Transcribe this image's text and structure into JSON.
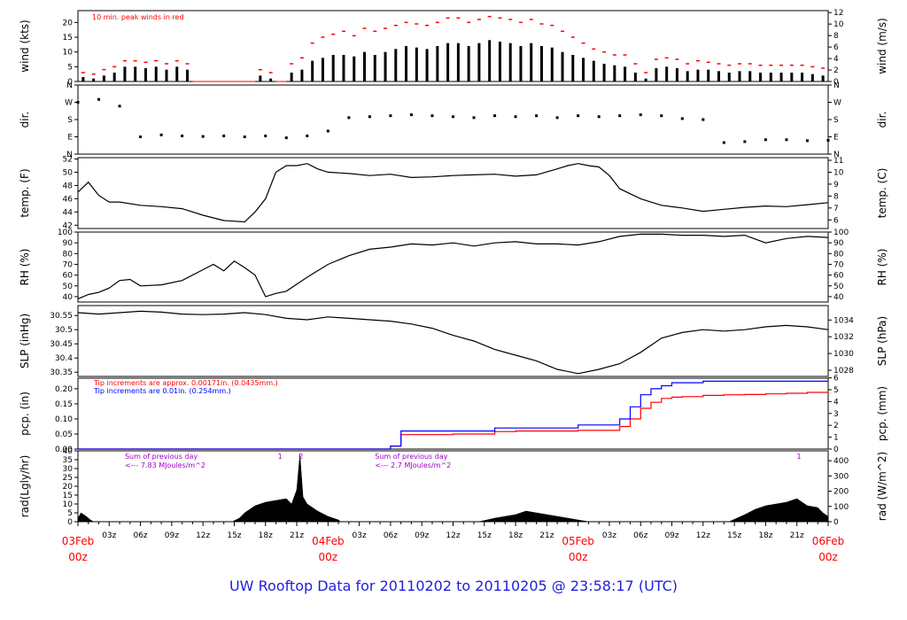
{
  "footer_title": "UW Rooftop Data for 20110202  to  20110205 @ 23:58:17  (UTC)",
  "colors": {
    "data": "#000000",
    "peak": "#ff0000",
    "time_major": "#ff0000",
    "pcp_red": "#ff0000",
    "pcp_blue": "#0000ff",
    "annot_purple": "#a000c0",
    "footer": "#1f1fd9"
  },
  "chart_data": [
    {
      "id": "wind",
      "type": "line",
      "ylabel": "wind (kts)",
      "ylabel_right": "wind (m/s)",
      "ylim": [
        0,
        24
      ],
      "yticks": [
        0,
        5,
        10,
        15,
        20
      ],
      "right_ticks": [
        0,
        2,
        4,
        6,
        8,
        10,
        12
      ],
      "right_factor": 0.5144,
      "annotation": "10 min. peak winds in red",
      "series": [
        {
          "name": "",
          "kind": "bars",
          "x": [
            1,
            2,
            3,
            4,
            5,
            6,
            7,
            8,
            9,
            10,
            11,
            12,
            13,
            14,
            15,
            16,
            17,
            18,
            19,
            20,
            21,
            22,
            23,
            24,
            25,
            26,
            27,
            28,
            29,
            30,
            31,
            32,
            33,
            34,
            35,
            36,
            37,
            38,
            39,
            40,
            41,
            42,
            43,
            44,
            45,
            46,
            47,
            48,
            49,
            50,
            51,
            52,
            53,
            54,
            55,
            56,
            57,
            58,
            59,
            60,
            61,
            62,
            63,
            64,
            65,
            66,
            67,
            68,
            69,
            70,
            71,
            72
          ],
          "y": [
            1.5,
            1,
            2,
            3,
            5,
            5,
            4.5,
            5,
            4,
            5,
            4,
            0,
            0,
            0,
            0,
            0,
            0,
            2,
            1,
            0,
            3,
            4,
            7,
            8,
            9,
            9,
            8.5,
            10,
            9,
            10,
            11,
            12,
            11.5,
            11,
            12,
            13,
            13,
            12,
            13,
            14,
            13.5,
            13,
            12,
            13,
            12,
            11.5,
            10,
            9,
            8,
            7,
            6,
            5.5,
            5,
            3,
            1,
            4.5,
            5,
            4.5,
            3.5,
            4,
            4,
            3.5,
            3,
            3.5,
            3.5,
            3,
            3,
            3,
            3,
            3,
            2.5,
            2
          ]
        },
        {
          "name": "",
          "kind": "peaks",
          "x": [
            1,
            2,
            3,
            4,
            5,
            6,
            7,
            8,
            9,
            10,
            11,
            12,
            13,
            14,
            15,
            16,
            17,
            18,
            19,
            20,
            21,
            22,
            23,
            24,
            25,
            26,
            27,
            28,
            29,
            30,
            31,
            32,
            33,
            34,
            35,
            36,
            37,
            38,
            39,
            40,
            41,
            42,
            43,
            44,
            45,
            46,
            47,
            48,
            49,
            50,
            51,
            52,
            53,
            54,
            55,
            56,
            57,
            58,
            59,
            60,
            61,
            62,
            63,
            64,
            65,
            66,
            67,
            68,
            69,
            70,
            71,
            72
          ],
          "y": [
            3,
            2.5,
            4,
            5,
            7,
            7,
            6.5,
            7,
            6,
            7,
            6,
            0,
            0,
            0,
            0,
            0,
            0,
            4,
            3,
            0,
            6,
            8,
            13,
            15,
            16,
            17,
            15.5,
            18,
            17,
            18,
            19,
            20,
            19.5,
            19,
            20,
            21.5,
            21.5,
            20,
            21,
            22,
            21.5,
            21,
            20,
            21,
            19.5,
            19,
            17,
            15,
            13,
            11,
            10,
            9,
            9,
            6,
            3,
            7.5,
            8,
            7.5,
            6,
            7,
            6.5,
            6,
            5.5,
            6,
            6,
            5.5,
            5.5,
            5.5,
            5.5,
            5.5,
            5,
            4.5
          ]
        }
      ]
    },
    {
      "id": "dir",
      "type": "scatter",
      "ylabel": "dir.",
      "ylabel_right": "dir.",
      "ylim": [
        0,
        360
      ],
      "ytick_labels": [
        "N",
        "E",
        "S",
        "W",
        "N"
      ],
      "yticks": [
        0,
        90,
        180,
        270,
        360
      ],
      "series": [
        {
          "name": "",
          "x": [
            0,
            2,
            4,
            6,
            8,
            10,
            12,
            14,
            16,
            18,
            20,
            22,
            24,
            26,
            28,
            30,
            32,
            34,
            36,
            38,
            40,
            42,
            44,
            46,
            48,
            50,
            52,
            54,
            56,
            58,
            60,
            62,
            64,
            66,
            68,
            70,
            72
          ],
          "y": [
            270,
            285,
            250,
            90,
            100,
            95,
            92,
            95,
            90,
            95,
            85,
            95,
            120,
            190,
            195,
            200,
            205,
            200,
            195,
            190,
            200,
            195,
            200,
            190,
            200,
            195,
            200,
            205,
            200,
            185,
            180,
            60,
            65,
            75,
            75,
            70,
            72
          ]
        }
      ]
    },
    {
      "id": "temp",
      "type": "line",
      "ylabel": "temp. (F)",
      "ylabel_right": "temp. (C)",
      "ylim": [
        41.5,
        52.2
      ],
      "yticks": [
        42,
        44,
        46,
        48,
        50,
        52
      ],
      "right_ticks": [
        6,
        7,
        8,
        9,
        10,
        11
      ],
      "series": [
        {
          "name": "",
          "x": [
            0,
            1,
            2,
            3,
            4,
            6,
            8,
            10,
            12,
            14,
            16,
            17,
            18,
            19,
            20,
            21,
            22,
            23,
            24,
            26,
            28,
            30,
            32,
            34,
            36,
            38,
            40,
            42,
            44,
            46,
            47,
            48,
            49,
            50,
            51,
            52,
            54,
            56,
            58,
            60,
            62,
            64,
            66,
            68,
            70,
            72
          ],
          "y": [
            47,
            48.5,
            46.5,
            45.5,
            45.5,
            45,
            44.8,
            44.5,
            43.5,
            42.7,
            42.5,
            44,
            46,
            50,
            51,
            51,
            51.3,
            50.5,
            50,
            49.8,
            49.5,
            49.7,
            49.2,
            49.3,
            49.5,
            49.6,
            49.7,
            49.4,
            49.6,
            50.5,
            51,
            51.3,
            51,
            50.8,
            49.5,
            47.5,
            46,
            45,
            44.6,
            44.1,
            44.4,
            44.7,
            44.9,
            44.8,
            45.1,
            45.4
          ]
        }
      ]
    },
    {
      "id": "rh",
      "type": "line",
      "ylabel": "RH (%)",
      "ylabel_right": "RH (%)",
      "ylim": [
        35,
        100
      ],
      "yticks": [
        40,
        50,
        60,
        70,
        80,
        90,
        100
      ],
      "series": [
        {
          "name": "",
          "x": [
            0,
            1,
            2,
            3,
            4,
            5,
            6,
            8,
            10,
            12,
            13,
            14,
            15,
            16,
            17,
            18,
            19,
            20,
            22,
            24,
            26,
            28,
            30,
            32,
            34,
            36,
            38,
            40,
            42,
            44,
            46,
            48,
            50,
            52,
            54,
            56,
            58,
            60,
            62,
            64,
            66,
            68,
            70,
            72
          ],
          "y": [
            38,
            42,
            44,
            48,
            55,
            56,
            50,
            51,
            55,
            65,
            70,
            64,
            73,
            67,
            60,
            40,
            43,
            45,
            58,
            70,
            78,
            84,
            86,
            89,
            88,
            90,
            87,
            90,
            91,
            89,
            89,
            88,
            91,
            96,
            98,
            98,
            97,
            97,
            96,
            97,
            90,
            94,
            96,
            95
          ]
        }
      ]
    },
    {
      "id": "slp",
      "type": "line",
      "ylabel": "SLP (inHg)",
      "ylabel_right": "SLP (hPa)",
      "ylim": [
        30.335,
        30.585
      ],
      "yticks": [
        30.35,
        30.4,
        30.45,
        30.5,
        30.55
      ],
      "right_ticks": [
        1028,
        1030,
        1032,
        1034
      ],
      "right_factor": 33.8639,
      "series": [
        {
          "name": "",
          "x": [
            0,
            2,
            4,
            6,
            8,
            10,
            12,
            14,
            16,
            18,
            20,
            22,
            24,
            26,
            28,
            30,
            32,
            34,
            36,
            38,
            40,
            42,
            44,
            46,
            48,
            50,
            52,
            54,
            56,
            58,
            60,
            62,
            64,
            66,
            68,
            70,
            72
          ],
          "y": [
            30.56,
            30.555,
            30.56,
            30.565,
            30.562,
            30.555,
            30.553,
            30.555,
            30.56,
            30.553,
            30.54,
            30.535,
            30.545,
            30.54,
            30.535,
            30.53,
            30.52,
            30.505,
            30.48,
            30.46,
            30.43,
            30.41,
            30.39,
            30.36,
            30.345,
            30.36,
            30.38,
            30.42,
            30.47,
            30.49,
            30.5,
            30.495,
            30.5,
            30.51,
            30.515,
            30.51,
            30.5
          ]
        }
      ]
    },
    {
      "id": "pcp",
      "type": "line",
      "ylabel": "pcp. (in)",
      "ylabel_right": "pcp. (mm)",
      "ylim": [
        0,
        0.235
      ],
      "yticks": [
        0,
        0.05,
        0.1,
        0.15,
        0.2
      ],
      "ytick_labels": [
        "0.00",
        "0.05",
        "0.10",
        "0.15",
        "0.20"
      ],
      "right_ticks": [
        0,
        1,
        2,
        3,
        4,
        5,
        6
      ],
      "right_factor": 25.4,
      "annotations": [
        {
          "text": "Tip increments are approx. 0.00171in. (0.0435mm.)",
          "color": "red"
        },
        {
          "text": "Tip increments are 0.01in. (0.254mm.)",
          "color": "blue"
        }
      ],
      "series": [
        {
          "name": "",
          "color": "red",
          "x": [
            0,
            28,
            30,
            31,
            36,
            40,
            42,
            48,
            52,
            53,
            54,
            55,
            56,
            57,
            58,
            60,
            62,
            64,
            66,
            68,
            70,
            72
          ],
          "y": [
            0,
            0,
            0.01,
            0.048,
            0.05,
            0.058,
            0.06,
            0.062,
            0.075,
            0.1,
            0.135,
            0.155,
            0.168,
            0.172,
            0.174,
            0.178,
            0.18,
            0.181,
            0.183,
            0.185,
            0.188,
            0.19
          ]
        },
        {
          "name": "",
          "color": "blue",
          "x": [
            0,
            28,
            30,
            31,
            36,
            40,
            42,
            48,
            52,
            53,
            54,
            55,
            56,
            57,
            58,
            60,
            62,
            64,
            66,
            68,
            70,
            72
          ],
          "y": [
            0,
            0,
            0.01,
            0.06,
            0.06,
            0.07,
            0.07,
            0.08,
            0.1,
            0.14,
            0.18,
            0.2,
            0.21,
            0.22,
            0.22,
            0.225,
            0.225,
            0.225,
            0.225,
            0.225,
            0.225,
            0.225
          ]
        }
      ]
    },
    {
      "id": "rad",
      "type": "area",
      "ylabel": "rad(Lgly/hr)",
      "ylabel_right": "rad (W/m^2)",
      "ylim": [
        0,
        40
      ],
      "yticks": [
        0,
        5,
        10,
        15,
        20,
        25,
        30,
        35,
        40
      ],
      "right_ticks": [
        0,
        100,
        200,
        300,
        400
      ],
      "right_factor": 11.622,
      "annotations": [
        {
          "lines": [
            "Sum of previous day",
            "<--- 7.83 MJoules/m^2"
          ],
          "x_hour": 4.5
        },
        {
          "lines": [
            "Sum of previous day",
            "<--- 2.7 MJoules/m^2"
          ],
          "x_hour": 28.5
        }
      ],
      "markers": [
        {
          "label": "1",
          "x_hour": 19.4
        },
        {
          "label": "2",
          "x_hour": 21.4
        },
        {
          "label": "1",
          "x_hour": 69.2
        }
      ],
      "series": [
        {
          "name": "",
          "x": [
            0,
            0.3,
            0.8,
            1.2,
            1.5,
            14.8,
            15.5,
            16,
            17,
            18,
            19,
            20,
            20.5,
            21,
            21.3,
            21.6,
            22,
            23,
            24,
            25,
            25.2,
            38.5,
            40,
            42,
            43,
            44,
            45,
            47,
            48,
            49,
            62.5,
            64,
            65,
            66,
            67,
            68,
            69,
            70,
            71,
            71.5,
            72
          ],
          "y": [
            2,
            5,
            3,
            1,
            0,
            0,
            2,
            5,
            9,
            11,
            12,
            13,
            10,
            18,
            38,
            14,
            10,
            6,
            3,
            1,
            0,
            0,
            2,
            4,
            6,
            5,
            4,
            2,
            1,
            0,
            0,
            4,
            7,
            9,
            10,
            11,
            13,
            9,
            8,
            5,
            3
          ]
        }
      ]
    }
  ],
  "x_axis": {
    "major_labels": [
      {
        "date": "03Feb",
        "time": "00z",
        "hour": 0
      },
      {
        "date": "04Feb",
        "time": "00z",
        "hour": 24
      },
      {
        "date": "05Feb",
        "time": "00z",
        "hour": 48
      },
      {
        "date": "06Feb",
        "time": "00z",
        "hour": 72
      }
    ],
    "minor_labels": [
      {
        "label": "03z",
        "hour": 3
      },
      {
        "label": "06z",
        "hour": 6
      },
      {
        "label": "09z",
        "hour": 9
      },
      {
        "label": "12z",
        "hour": 12
      },
      {
        "label": "15z",
        "hour": 15
      },
      {
        "label": "18z",
        "hour": 18
      },
      {
        "label": "21z",
        "hour": 21
      },
      {
        "label": "03z",
        "hour": 27
      },
      {
        "label": "06z",
        "hour": 30
      },
      {
        "label": "09z",
        "hour": 33
      },
      {
        "label": "12z",
        "hour": 36
      },
      {
        "label": "15z",
        "hour": 39
      },
      {
        "label": "18z",
        "hour": 42
      },
      {
        "label": "21z",
        "hour": 45
      },
      {
        "label": "03z",
        "hour": 51
      },
      {
        "label": "06z",
        "hour": 54
      },
      {
        "label": "09z",
        "hour": 57
      },
      {
        "label": "12z",
        "hour": 60
      },
      {
        "label": "15z",
        "hour": 63
      },
      {
        "label": "18z",
        "hour": 66
      },
      {
        "label": "21z",
        "hour": 69
      }
    ]
  }
}
